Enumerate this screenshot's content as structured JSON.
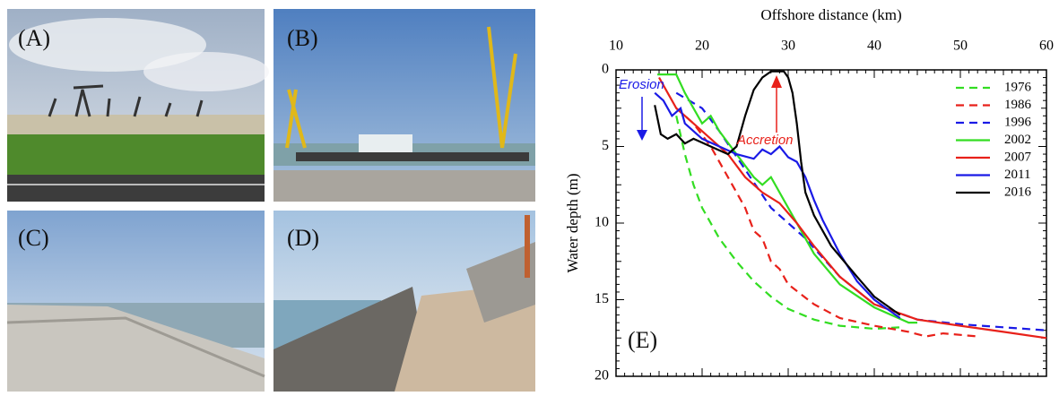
{
  "panels": [
    {
      "label": "(A)"
    },
    {
      "label": "(B)"
    },
    {
      "label": "(C)"
    },
    {
      "label": "(D)"
    }
  ],
  "chart_data": {
    "type": "line",
    "panel_label": "(E)",
    "xlabel": "Offshore distance (km)",
    "ylabel": "Water depth (m)",
    "xlim": [
      10,
      60
    ],
    "xticks": [
      10,
      20,
      30,
      40,
      50,
      60
    ],
    "ylim": [
      0,
      20
    ],
    "yticks": [
      0,
      5,
      10,
      15,
      20
    ],
    "y_inverted": true,
    "x_axis_position": "top",
    "legend": "upper right",
    "annotations": [
      {
        "text": "Erosion",
        "color": "#1a1ae6"
      },
      {
        "text": "Accretion",
        "color": "#e8211a"
      }
    ],
    "series": [
      {
        "name": "1976",
        "color": "#33dd22",
        "dashed": true,
        "x": [
          17,
          18,
          19,
          20,
          22,
          24,
          26,
          28,
          30,
          33,
          36,
          40,
          43
        ],
        "values": [
          3,
          5.5,
          7.5,
          9,
          11,
          12.5,
          13.8,
          14.8,
          15.6,
          16.3,
          16.7,
          16.9,
          16.8
        ]
      },
      {
        "name": "1986",
        "color": "#e8211a",
        "dashed": true,
        "x": [
          17,
          19,
          21,
          23,
          25,
          26,
          27,
          28,
          29,
          30,
          33,
          36,
          40,
          44,
          46,
          48,
          52
        ],
        "values": [
          2.5,
          3.5,
          5,
          7,
          9,
          10.5,
          11,
          12.5,
          13,
          14,
          15.3,
          16.2,
          16.7,
          17.1,
          17.4,
          17.2,
          17.4
        ]
      },
      {
        "name": "1996",
        "color": "#1a1ae6",
        "dashed": true,
        "x": [
          17,
          20,
          22,
          25,
          28,
          32,
          36,
          40,
          45,
          50,
          55,
          60
        ],
        "values": [
          1.5,
          2.5,
          4,
          6.5,
          9,
          11,
          13.5,
          15.3,
          16.3,
          16.6,
          16.8,
          17
        ]
      },
      {
        "name": "2002",
        "color": "#33dd22",
        "dashed": false,
        "x": [
          14.8,
          17,
          18,
          19,
          20,
          21,
          22,
          24,
          26,
          27,
          28,
          30,
          33,
          36,
          40,
          44,
          45
        ],
        "values": [
          0.3,
          0.3,
          1.5,
          2.5,
          3.5,
          3,
          4,
          5.5,
          7,
          7.5,
          7,
          9,
          12,
          14,
          15.5,
          16.5,
          16.5
        ]
      },
      {
        "name": "2007",
        "color": "#e8211a",
        "dashed": false,
        "x": [
          15,
          16,
          17,
          19,
          21,
          23,
          25,
          27,
          29,
          31,
          33,
          36,
          40,
          45,
          50,
          55,
          60
        ],
        "values": [
          0.5,
          1.5,
          2.5,
          3.5,
          4.5,
          5.5,
          7,
          8,
          8.7,
          10,
          11.5,
          13.5,
          15.3,
          16.3,
          16.7,
          17.1,
          17.5
        ]
      },
      {
        "name": "2011",
        "color": "#1a1ae6",
        "dashed": false,
        "x": [
          14.5,
          15.5,
          16.5,
          17.5,
          18,
          20,
          22,
          24,
          26,
          27,
          28,
          29,
          30,
          31,
          32,
          33,
          34,
          36,
          38,
          40,
          43
        ],
        "values": [
          1.5,
          2,
          3,
          2.5,
          3.5,
          4.5,
          5,
          5.5,
          5.8,
          5.2,
          5.5,
          5,
          5.7,
          6,
          7,
          8.5,
          9.8,
          12,
          13.8,
          15,
          16.2
        ]
      },
      {
        "name": "2016",
        "color": "#000000",
        "dashed": false,
        "x": [
          14.5,
          15.2,
          16,
          17,
          18,
          19,
          21,
          23,
          24,
          25,
          26,
          27,
          28,
          29.5,
          30,
          30.5,
          31,
          31.5,
          32,
          33,
          35,
          38,
          40,
          43
        ],
        "values": [
          2.3,
          4.2,
          4.5,
          4.2,
          4.8,
          4.5,
          5,
          5.5,
          5,
          3,
          1.3,
          0.5,
          0.1,
          0.1,
          0.5,
          1.5,
          3.5,
          6,
          8,
          9.5,
          11.5,
          13.5,
          14.8,
          16
        ]
      }
    ]
  }
}
